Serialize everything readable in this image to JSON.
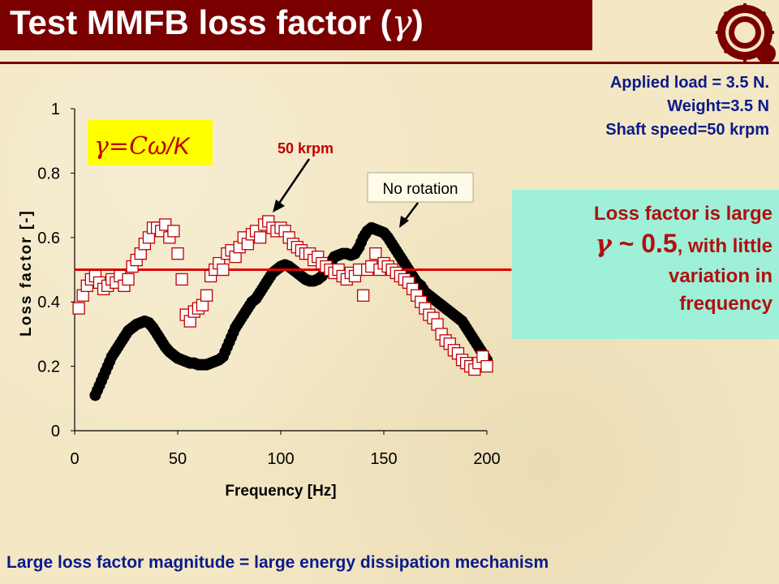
{
  "title": {
    "text": "Test MMFB loss factor (",
    "gamma": "γ",
    "close": ")"
  },
  "info": {
    "line1": "Applied load = 3.5 N.",
    "line2": "Weight=3.5 N",
    "line3": "Shaft speed=50 krpm"
  },
  "note": {
    "line1": "Loss factor is large",
    "gamma": "γ",
    "approx": " ~ 0.5",
    "rest": ", with little",
    "line3": "variation in",
    "line4": "frequency"
  },
  "footer": "Large loss factor magnitude =  large energy dissipation mechanism",
  "annotations": {
    "formula_gamma": "γ=C",
    "formula_rest": "ω/K",
    "label_50krpm": "50 krpm",
    "label_no_rotation": "No rotation"
  },
  "colors": {
    "title_bg": "#7a0000",
    "text_blue": "#0a1a8a",
    "note_bg": "#9ff0d8",
    "note_text": "#b01010",
    "series_50krpm": "#c00000",
    "series_no_rotation": "#000000",
    "average_line": "#e00000",
    "formula_bg": "#ffff00"
  },
  "chart_data": {
    "type": "scatter",
    "xlabel": "Frequency [Hz]",
    "ylabel": "Loss factor [-]",
    "xlim": [
      0,
      200
    ],
    "ylim": [
      0,
      1
    ],
    "xticks": [
      0,
      50,
      100,
      150,
      200
    ],
    "yticks": [
      0,
      0.2,
      0.4,
      0.6,
      0.8,
      1
    ],
    "ytick_labels": [
      "0",
      "0.2",
      "0.4",
      "0.6",
      "0.8",
      "1"
    ],
    "grid": false,
    "series": [
      {
        "name": "No rotation",
        "marker": "filled-circle",
        "x": [
          10,
          12,
          14,
          16,
          18,
          20,
          22,
          24,
          26,
          28,
          30,
          32,
          34,
          36,
          38,
          40,
          42,
          44,
          46,
          48,
          50,
          52,
          54,
          56,
          58,
          60,
          62,
          64,
          66,
          68,
          70,
          72,
          74,
          76,
          78,
          80,
          82,
          84,
          86,
          88,
          90,
          92,
          94,
          96,
          98,
          100,
          102,
          104,
          106,
          108,
          110,
          112,
          114,
          116,
          118,
          120,
          122,
          124,
          126,
          128,
          130,
          132,
          134,
          136,
          138,
          140,
          142,
          144,
          146,
          148,
          150,
          152,
          154,
          156,
          158,
          160,
          162,
          164,
          166,
          168,
          170,
          172,
          174,
          176,
          178,
          180,
          182,
          184,
          186,
          188,
          190,
          192,
          194,
          196,
          198,
          200
        ],
        "y": [
          0.11,
          0.14,
          0.17,
          0.2,
          0.23,
          0.25,
          0.27,
          0.29,
          0.31,
          0.32,
          0.33,
          0.335,
          0.34,
          0.335,
          0.32,
          0.3,
          0.28,
          0.26,
          0.245,
          0.235,
          0.225,
          0.22,
          0.215,
          0.21,
          0.21,
          0.205,
          0.205,
          0.205,
          0.21,
          0.215,
          0.22,
          0.23,
          0.26,
          0.29,
          0.32,
          0.34,
          0.36,
          0.38,
          0.4,
          0.41,
          0.43,
          0.45,
          0.47,
          0.49,
          0.5,
          0.51,
          0.515,
          0.51,
          0.5,
          0.49,
          0.48,
          0.47,
          0.465,
          0.465,
          0.47,
          0.48,
          0.5,
          0.52,
          0.54,
          0.545,
          0.55,
          0.55,
          0.545,
          0.55,
          0.57,
          0.6,
          0.62,
          0.63,
          0.625,
          0.62,
          0.615,
          0.6,
          0.58,
          0.56,
          0.54,
          0.52,
          0.5,
          0.48,
          0.46,
          0.45,
          0.43,
          0.42,
          0.41,
          0.4,
          0.39,
          0.38,
          0.37,
          0.36,
          0.35,
          0.34,
          0.32,
          0.3,
          0.28,
          0.26,
          0.24,
          0.22
        ]
      },
      {
        "name": "50 krpm",
        "marker": "open-square",
        "x": [
          2,
          4,
          6,
          8,
          10,
          12,
          14,
          16,
          18,
          20,
          22,
          24,
          26,
          28,
          30,
          32,
          34,
          36,
          38,
          40,
          42,
          44,
          46,
          48,
          50,
          52,
          54,
          56,
          58,
          60,
          62,
          64,
          66,
          68,
          70,
          72,
          74,
          76,
          78,
          80,
          82,
          84,
          86,
          88,
          90,
          92,
          94,
          96,
          98,
          100,
          102,
          104,
          106,
          108,
          110,
          112,
          114,
          116,
          118,
          120,
          122,
          124,
          126,
          128,
          130,
          132,
          134,
          136,
          138,
          140,
          142,
          144,
          146,
          148,
          150,
          152,
          154,
          156,
          158,
          160,
          162,
          164,
          166,
          168,
          170,
          172,
          174,
          176,
          178,
          180,
          182,
          184,
          186,
          188,
          190,
          192,
          194,
          196,
          198,
          200
        ],
        "y": [
          0.38,
          0.42,
          0.45,
          0.47,
          0.48,
          0.46,
          0.44,
          0.45,
          0.47,
          0.46,
          0.48,
          0.45,
          0.47,
          0.51,
          0.53,
          0.55,
          0.58,
          0.6,
          0.63,
          0.63,
          0.62,
          0.64,
          0.6,
          0.62,
          0.55,
          0.47,
          0.36,
          0.34,
          0.37,
          0.38,
          0.39,
          0.42,
          0.48,
          0.5,
          0.52,
          0.5,
          0.55,
          0.56,
          0.54,
          0.57,
          0.6,
          0.58,
          0.61,
          0.62,
          0.6,
          0.64,
          0.65,
          0.63,
          0.62,
          0.63,
          0.62,
          0.6,
          0.58,
          0.57,
          0.56,
          0.55,
          0.55,
          0.53,
          0.54,
          0.52,
          0.51,
          0.5,
          0.49,
          0.5,
          0.48,
          0.47,
          0.49,
          0.48,
          0.5,
          0.42,
          0.5,
          0.51,
          0.55,
          0.5,
          0.52,
          0.51,
          0.5,
          0.49,
          0.48,
          0.47,
          0.46,
          0.44,
          0.42,
          0.4,
          0.38,
          0.36,
          0.35,
          0.33,
          0.3,
          0.28,
          0.27,
          0.25,
          0.24,
          0.22,
          0.21,
          0.2,
          0.19,
          0.21,
          0.23,
          0.2
        ]
      }
    ],
    "average_line": {
      "value": 0.5,
      "x_range": [
        0,
        210
      ]
    }
  }
}
